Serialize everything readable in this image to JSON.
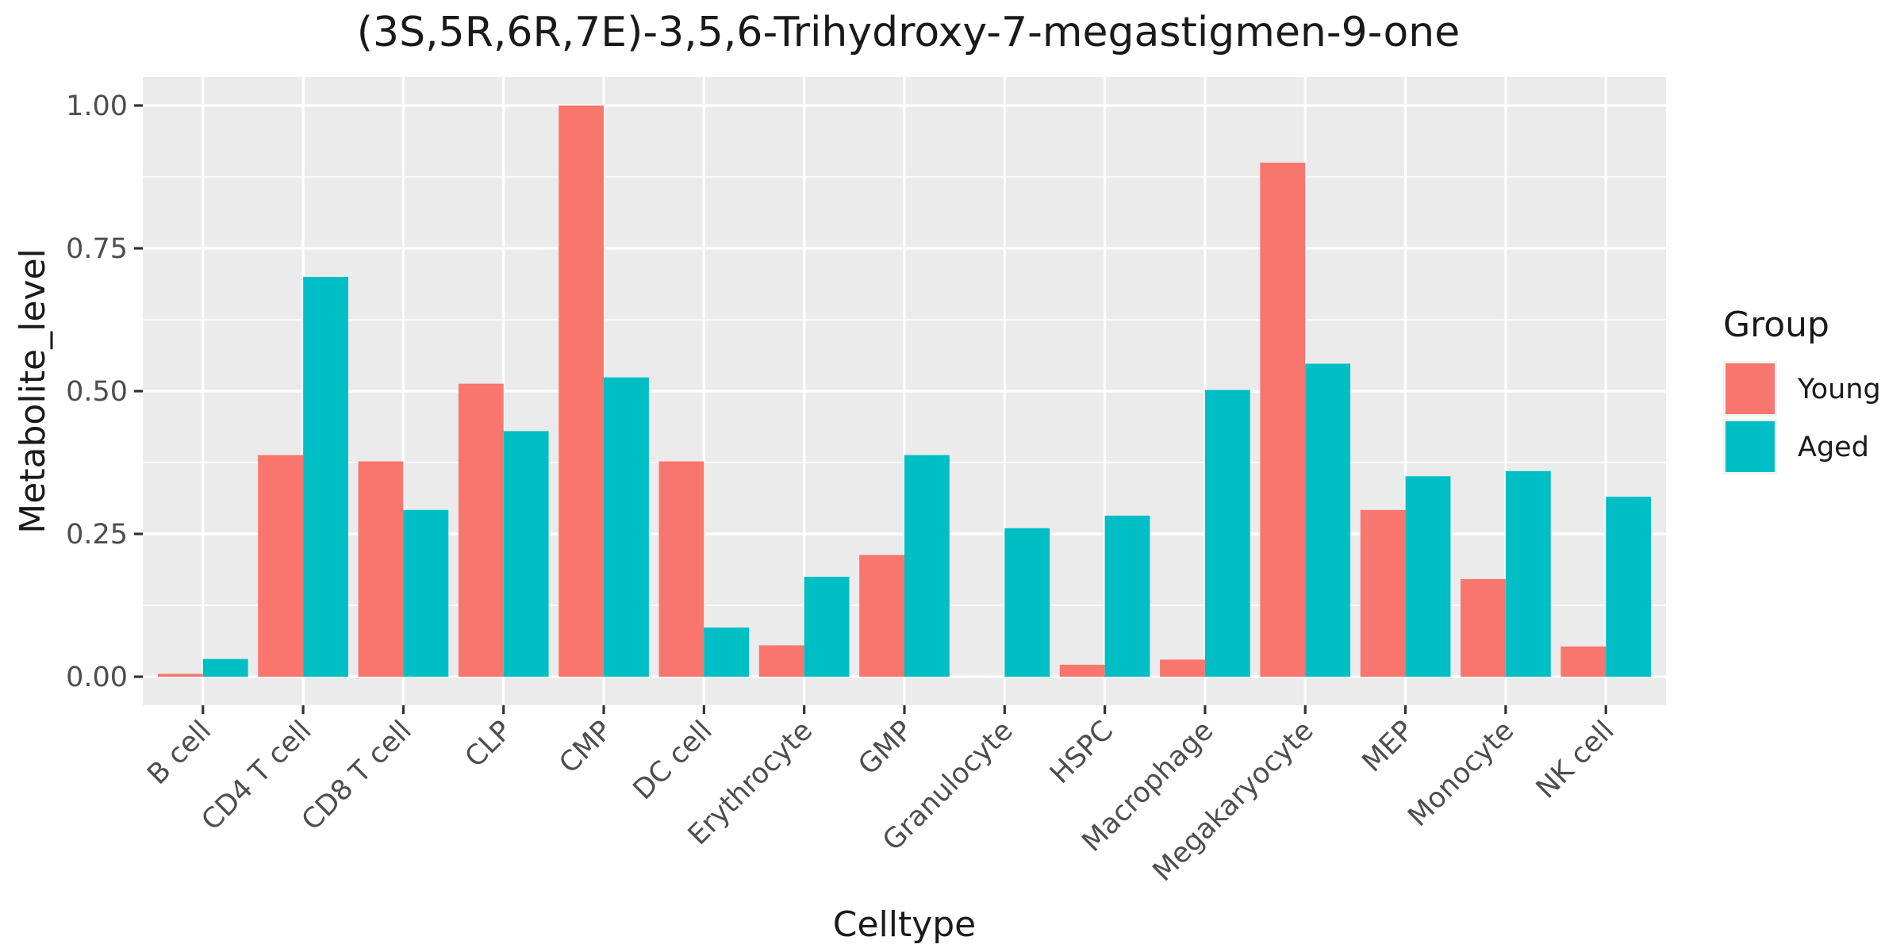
{
  "chart_data": {
    "type": "bar",
    "title": "(3S,5R,6R,7E)-3,5,6-Trihydroxy-7-megastigmen-9-one",
    "xlabel": "Celltype",
    "ylabel": "Metabolite_level",
    "ylim": [
      -0.05,
      1.05
    ],
    "yticks": [
      0,
      0.25,
      0.5,
      0.75,
      1.0
    ],
    "ytick_labels": [
      "0.00",
      "0.25",
      "0.50",
      "0.75",
      "1.00"
    ],
    "grid": true,
    "legend": {
      "title": "Group",
      "position": "right"
    },
    "categories": [
      "B cell",
      "CD4 T cell",
      "CD8 T cell",
      "CLP",
      "CMP",
      "DC cell",
      "Erythrocyte",
      "GMP",
      "Granulocyte",
      "HSPC",
      "Macrophage",
      "Megakaryocyte",
      "MEP",
      "Monocyte",
      "NK cell"
    ],
    "series": [
      {
        "name": "Young",
        "color": "#F8766D",
        "values": [
          0.005,
          0.388,
          0.377,
          0.513,
          1.0,
          0.377,
          0.055,
          0.213,
          0.0,
          0.021,
          0.03,
          0.9,
          0.292,
          0.171,
          0.053
        ]
      },
      {
        "name": "Aged",
        "color": "#00BFC4",
        "values": [
          0.031,
          0.7,
          0.292,
          0.43,
          0.524,
          0.086,
          0.175,
          0.388,
          0.26,
          0.282,
          0.502,
          0.548,
          0.351,
          0.36,
          0.315
        ]
      }
    ]
  },
  "colors": {
    "panel_background": "#EBEBEB",
    "grid": "#FFFFFF",
    "axis_tick": "#333333"
  }
}
